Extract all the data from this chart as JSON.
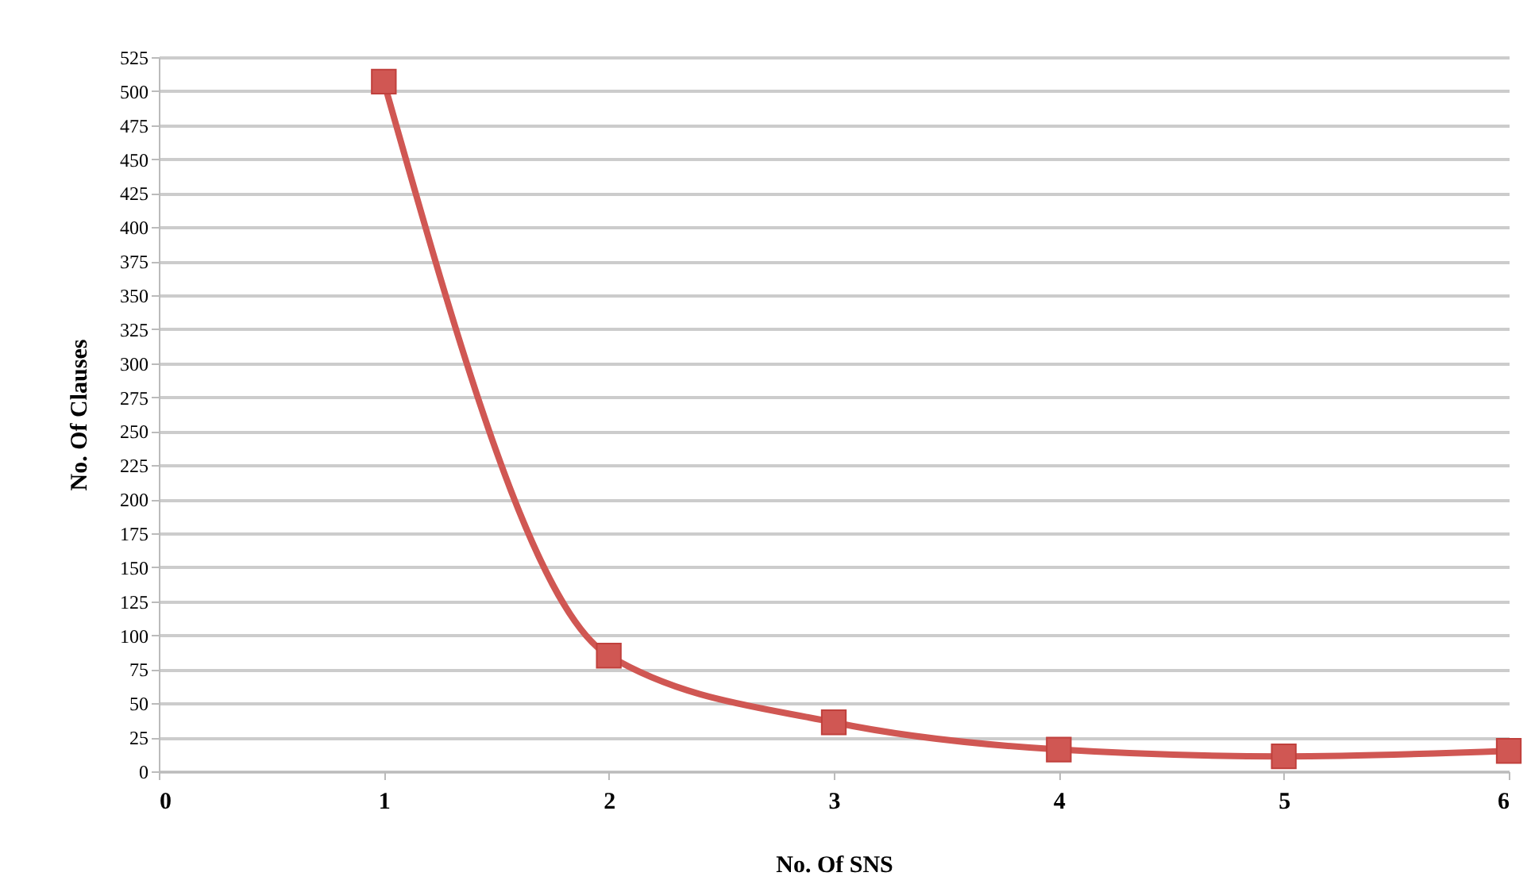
{
  "chart_data": {
    "type": "line",
    "xlabel": "No. Of SNS",
    "ylabel": "No. Of Clauses",
    "x": [
      1,
      2,
      3,
      4,
      5,
      6
    ],
    "series": [
      {
        "color": "#d05753",
        "values": [
          507,
          85,
          36,
          16,
          11,
          15
        ]
      }
    ],
    "xlim": [
      0,
      6
    ],
    "xticks": [
      0,
      1,
      2,
      3,
      4,
      5,
      6
    ],
    "ylim": [
      0,
      525
    ],
    "yticks": [
      0,
      25,
      50,
      75,
      100,
      125,
      150,
      175,
      200,
      225,
      250,
      275,
      300,
      325,
      350,
      375,
      400,
      425,
      450,
      475,
      500,
      525
    ],
    "grid": "y",
    "marker": "square",
    "line_style": "solid",
    "legend": false
  }
}
